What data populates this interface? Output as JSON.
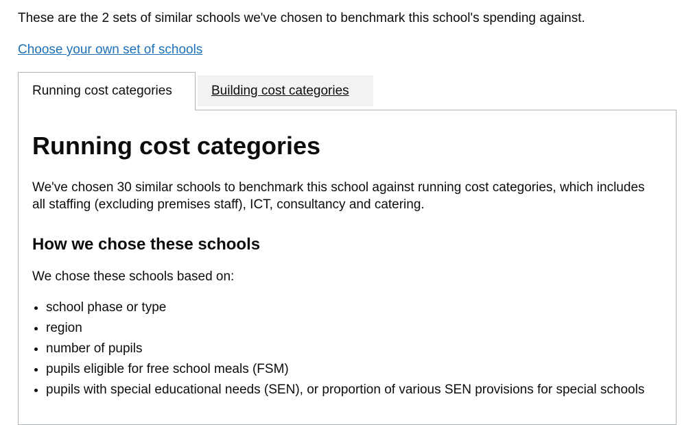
{
  "intro": "These are the 2 sets of similar schools we've chosen to benchmark this school's spending against.",
  "choose_link": "Choose your own set of schools",
  "tabs": [
    {
      "label": "Running cost categories",
      "active": true
    },
    {
      "label": "Building cost categories",
      "active": false
    }
  ],
  "panel": {
    "title": "Running cost categories",
    "description": "We've chosen 30 similar schools to benchmark this school against running cost categories, which includes all staffing (excluding premises staff), ICT, consultancy and catering.",
    "subheading": "How we chose these schools",
    "based_on": "We chose these schools based on:",
    "criteria": [
      "school phase or type",
      "region",
      "number of pupils",
      "pupils eligible for free school meals (FSM)",
      "pupils with special educational needs (SEN), or proportion of various SEN provisions for special schools"
    ]
  },
  "colors": {
    "link": "#1d70b8",
    "border": "#b1b4b6",
    "inactive_tab": "#f3f2f1",
    "text": "#0b0c0c"
  }
}
